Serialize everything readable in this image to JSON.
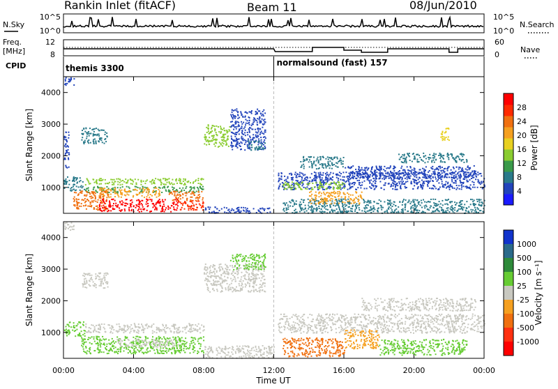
{
  "header": {
    "station": "Rankin Inlet (fitACF)",
    "beam": "Beam 11",
    "date": "08/Jun/2010"
  },
  "noise_panel": {
    "left_label": "N.Sky",
    "right_label": "N.Search",
    "left_ticks": [
      "10^5",
      "10^0"
    ],
    "right_ticks": [
      "10^5",
      "10^0"
    ]
  },
  "freq_panel": {
    "left_label_1": "Freq.",
    "left_label_2": "[MHz]",
    "right_label": "Nave",
    "left_ticks": [
      "12",
      "8"
    ],
    "right_ticks": [
      "60",
      "0"
    ]
  },
  "cpid": {
    "label": "CPID",
    "segments": [
      {
        "text": "themis 3300",
        "start_hour": 0
      },
      {
        "text": "normalsound (fast) 157",
        "start_hour": 12
      }
    ]
  },
  "x_axis": {
    "label": "Time UT",
    "ticks": [
      "00:00",
      "04:00",
      "08:00",
      "12:00",
      "16:00",
      "20:00",
      "00:00"
    ]
  },
  "power_panel": {
    "ylabel": "Slant Range [km]",
    "yticks": [
      "1000",
      "2000",
      "3000",
      "4000"
    ],
    "colorbar_label": "Power [dB]",
    "colorbar_ticks": [
      "4",
      "8",
      "12",
      "16",
      "20",
      "24",
      "28"
    ],
    "colorbar_colors": [
      "#1a1aff",
      "#2244bb",
      "#2a7a8a",
      "#3a9a4a",
      "#8acc30",
      "#e8d020",
      "#f5a020",
      "#f07010",
      "#ff2a00",
      "#ff0000"
    ]
  },
  "velocity_panel": {
    "ylabel": "Slant Range [km]",
    "yticks": [
      "1000",
      "2000",
      "3000",
      "4000"
    ],
    "colorbar_label": "Velocity [m s⁻¹]",
    "colorbar_ticks": [
      "1000",
      "500",
      "100",
      "25",
      "-25",
      "-100",
      "-500",
      "-1000"
    ],
    "colorbar_colors": [
      "#1133cc",
      "#2a6a8a",
      "#2e8a3a",
      "#66cc33",
      "#c8c8c0",
      "#f5a020",
      "#f07010",
      "#ff3010",
      "#ff0000"
    ]
  },
  "chart_data": {
    "type": "heatmap",
    "title": "Rankin Inlet (fitACF)",
    "x_range_hours": [
      0,
      24
    ],
    "y_range_km": [
      180,
      4500
    ],
    "xlabel": "Time UT",
    "ylabel": "Slant Range [km]",
    "grid": false,
    "power_regions": [
      {
        "t0": 0.0,
        "t1": 0.6,
        "r0": 4250,
        "r1": 4500,
        "color": "#2244bb"
      },
      {
        "t0": 1.0,
        "t1": 2.5,
        "r0": 2400,
        "r1": 2900,
        "color": "#2a7a8a"
      },
      {
        "t0": 0.0,
        "t1": 0.3,
        "r0": 1600,
        "r1": 2800,
        "color": "#2244bb"
      },
      {
        "t0": 0.0,
        "t1": 1.2,
        "r0": 900,
        "r1": 1350,
        "color": "#2a7a8a"
      },
      {
        "t0": 1.2,
        "t1": 8.0,
        "r0": 1100,
        "r1": 1300,
        "color": "#8acc30"
      },
      {
        "t0": 1.2,
        "t1": 8.0,
        "r0": 850,
        "r1": 1050,
        "color": "#3a9a4a"
      },
      {
        "t0": 2.0,
        "t1": 5.5,
        "r0": 700,
        "r1": 1000,
        "color": "#f5a020"
      },
      {
        "t0": 0.5,
        "t1": 2.5,
        "r0": 300,
        "r1": 900,
        "color": "#f07010"
      },
      {
        "t0": 6.0,
        "t1": 8.0,
        "r0": 600,
        "r1": 900,
        "color": "#f07010"
      },
      {
        "t0": 2.0,
        "t1": 6.5,
        "r0": 250,
        "r1": 650,
        "color": "#ff0000"
      },
      {
        "t0": 6.5,
        "t1": 8.0,
        "r0": 300,
        "r1": 600,
        "color": "#ff2a00"
      },
      {
        "t0": 8.0,
        "t1": 11.8,
        "r0": 200,
        "r1": 400,
        "color": "#2244bb"
      },
      {
        "t0": 8.0,
        "t1": 9.5,
        "r0": 2300,
        "r1": 3000,
        "color": "#8acc30"
      },
      {
        "t0": 9.5,
        "t1": 11.5,
        "r0": 2200,
        "r1": 3500,
        "color": "#2244bb"
      },
      {
        "t0": 10.5,
        "t1": 11.5,
        "r0": 2200,
        "r1": 2500,
        "color": "#2a7a8a"
      },
      {
        "t0": 12.2,
        "t1": 24.0,
        "r0": 950,
        "r1": 1500,
        "color": "#2244bb"
      },
      {
        "t0": 12.5,
        "t1": 16.0,
        "r0": 950,
        "r1": 1200,
        "color": "#8acc30"
      },
      {
        "t0": 16.0,
        "t1": 23.5,
        "r0": 1300,
        "r1": 1700,
        "color": "#2244bb"
      },
      {
        "t0": 19.0,
        "t1": 23.0,
        "r0": 1800,
        "r1": 2100,
        "color": "#2a7a8a"
      },
      {
        "t0": 13.5,
        "t1": 16.0,
        "r0": 1600,
        "r1": 2000,
        "color": "#2a7a8a"
      },
      {
        "t0": 12.5,
        "t1": 24.0,
        "r0": 200,
        "r1": 650,
        "color": "#2a7a8a"
      },
      {
        "t0": 14.0,
        "t1": 17.0,
        "r0": 500,
        "r1": 900,
        "color": "#f5a020"
      },
      {
        "t0": 21.5,
        "t1": 22.0,
        "r0": 2500,
        "r1": 2900,
        "color": "#e8d020"
      }
    ],
    "velocity_regions": [
      {
        "t0": 0.0,
        "t1": 0.6,
        "r0": 4250,
        "r1": 4500,
        "color": "#c8c8c0"
      },
      {
        "t0": 1.0,
        "t1": 2.5,
        "r0": 2400,
        "r1": 2900,
        "color": "#c8c8c0"
      },
      {
        "t0": 0.0,
        "t1": 1.2,
        "r0": 900,
        "r1": 1350,
        "color": "#66cc33"
      },
      {
        "t0": 1.2,
        "t1": 8.0,
        "r0": 1000,
        "r1": 1300,
        "color": "#c8c8c0"
      },
      {
        "t0": 1.0,
        "t1": 8.0,
        "r0": 350,
        "r1": 900,
        "color": "#66cc33"
      },
      {
        "t0": 3.0,
        "t1": 6.5,
        "r0": 550,
        "r1": 800,
        "color": "#c8c8c0"
      },
      {
        "t0": 8.0,
        "t1": 11.5,
        "r0": 2300,
        "r1": 3200,
        "color": "#c8c8c0"
      },
      {
        "t0": 9.5,
        "t1": 11.5,
        "r0": 3000,
        "r1": 3500,
        "color": "#66cc33"
      },
      {
        "t0": 12.2,
        "t1": 24.0,
        "r0": 1000,
        "r1": 1600,
        "color": "#c8c8c0"
      },
      {
        "t0": 17.0,
        "t1": 23.5,
        "r0": 1700,
        "r1": 2100,
        "color": "#c8c8c0"
      },
      {
        "t0": 12.5,
        "t1": 16.0,
        "r0": 250,
        "r1": 850,
        "color": "#f07010"
      },
      {
        "t0": 16.0,
        "t1": 18.0,
        "r0": 500,
        "r1": 1100,
        "color": "#f5a020"
      },
      {
        "t0": 18.0,
        "t1": 23.0,
        "r0": 300,
        "r1": 800,
        "color": "#66cc33"
      },
      {
        "t0": 8.0,
        "t1": 12.0,
        "r0": 200,
        "r1": 600,
        "color": "#c8c8c0"
      }
    ]
  }
}
